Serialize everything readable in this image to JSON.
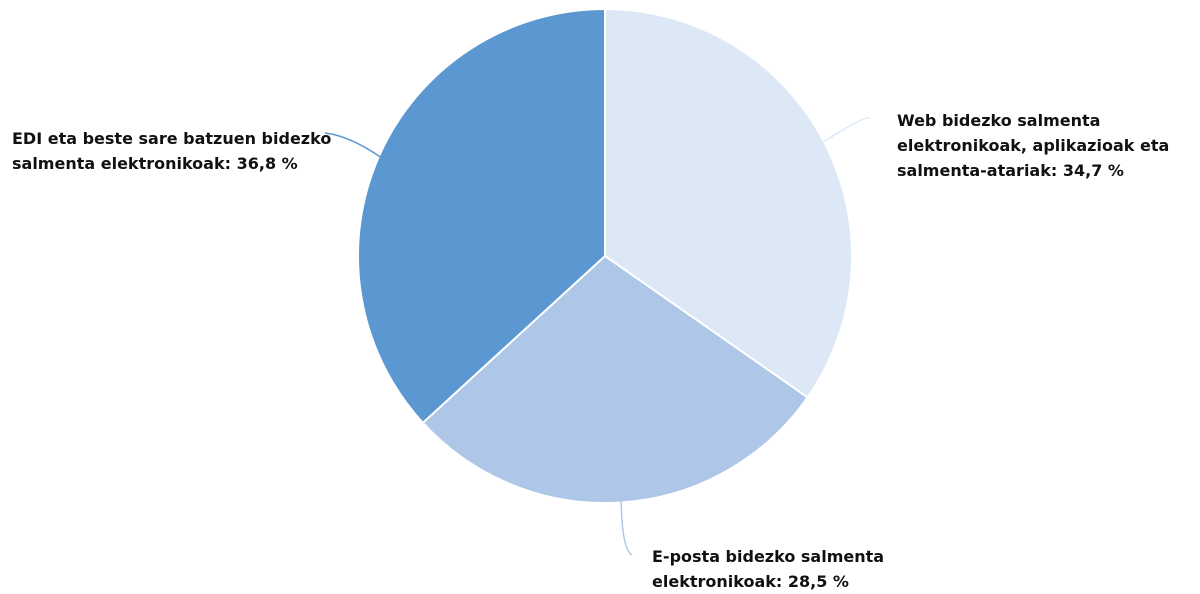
{
  "chart_data": {
    "type": "pie",
    "categories": [
      "Web bidezko salmenta elektronikoak, aplikazioak eta salmenta-atariak:",
      "E-posta bidezko salmenta elektronikoak:",
      "EDI eta beste sare batzuen bidezko salmenta elektronikoak:"
    ],
    "values": [
      34.7,
      28.5,
      36.8
    ],
    "value_labels": [
      "34,7 %",
      "28,5 %",
      "36,8 %"
    ],
    "colors": [
      "#dde8f6",
      "#aec6e8",
      "#5b97d0"
    ]
  }
}
